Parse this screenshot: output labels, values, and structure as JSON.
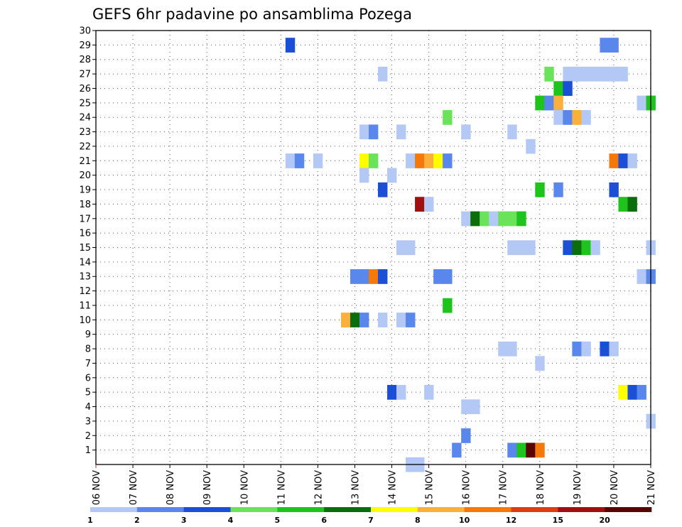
{
  "chart_data": {
    "type": "heatmap",
    "title": "GEFS 6hr padavine po ansamblima Pozega",
    "x_labels": [
      "06 NOV",
      "07 NOV",
      "08 NOV",
      "09 NOV",
      "10 NOV",
      "11 NOV",
      "12 NOV",
      "13 NOV",
      "14 NOV",
      "15 NOV",
      "16 NOV",
      "17 NOV",
      "18 NOV",
      "19 NOV",
      "20 NOV",
      "21 NOV"
    ],
    "y_labels": [
      "1",
      "2",
      "3",
      "4",
      "5",
      "6",
      "7",
      "8",
      "9",
      "10",
      "11",
      "12",
      "13",
      "14",
      "15",
      "16",
      "17",
      "18",
      "19",
      "20",
      "21",
      "22",
      "23",
      "24",
      "25",
      "26",
      "27",
      "28",
      "29",
      "30"
    ],
    "x_range_days": [
      0,
      15
    ],
    "y_range": [
      0,
      30
    ],
    "grid": true,
    "legend": {
      "placement": "bottom",
      "labels": [
        "1",
        "2",
        "3",
        "4",
        "5",
        "6",
        "7",
        "8",
        "10",
        "12",
        "15",
        "20"
      ],
      "colors": [
        "#b4c8f5",
        "#5a87eb",
        "#1a4fd6",
        "#6ae35a",
        "#1ec31e",
        "#0b6e0b",
        "#ffff00",
        "#fbb03b",
        "#f5780a",
        "#e03c14",
        "#a01010",
        "#5a0505"
      ]
    },
    "cells": [
      {
        "m": 29,
        "d": 5.25,
        "c": 2
      },
      {
        "m": 29,
        "d": 13.75,
        "c": 1
      },
      {
        "m": 29,
        "d": 14.0,
        "c": 1
      },
      {
        "m": 27,
        "d": 7.75,
        "c": 0
      },
      {
        "m": 27,
        "d": 12.25,
        "c": 3
      },
      {
        "m": 27,
        "d": 12.75,
        "c": 0
      },
      {
        "m": 27,
        "d": 13.0,
        "c": 0
      },
      {
        "m": 27,
        "d": 13.25,
        "c": 0
      },
      {
        "m": 27,
        "d": 13.5,
        "c": 0
      },
      {
        "m": 27,
        "d": 13.75,
        "c": 0
      },
      {
        "m": 27,
        "d": 14.0,
        "c": 0
      },
      {
        "m": 27,
        "d": 14.25,
        "c": 0
      },
      {
        "m": 26,
        "d": 12.5,
        "c": 4
      },
      {
        "m": 26,
        "d": 12.75,
        "c": 2
      },
      {
        "m": 25,
        "d": 12.0,
        "c": 4
      },
      {
        "m": 25,
        "d": 12.25,
        "c": 1
      },
      {
        "m": 25,
        "d": 12.5,
        "c": 7
      },
      {
        "m": 25,
        "d": 14.75,
        "c": 0
      },
      {
        "m": 25,
        "d": 15.0,
        "c": 4
      },
      {
        "m": 24,
        "d": 9.5,
        "c": 3
      },
      {
        "m": 24,
        "d": 12.5,
        "c": 0
      },
      {
        "m": 24,
        "d": 12.75,
        "c": 1
      },
      {
        "m": 24,
        "d": 13.0,
        "c": 7
      },
      {
        "m": 24,
        "d": 13.25,
        "c": 0
      },
      {
        "m": 23,
        "d": 7.25,
        "c": 0
      },
      {
        "m": 23,
        "d": 7.5,
        "c": 1
      },
      {
        "m": 23,
        "d": 8.25,
        "c": 0
      },
      {
        "m": 23,
        "d": 10.0,
        "c": 0
      },
      {
        "m": 23,
        "d": 11.25,
        "c": 0
      },
      {
        "m": 22,
        "d": 11.75,
        "c": 0
      },
      {
        "m": 21,
        "d": 5.25,
        "c": 0
      },
      {
        "m": 21,
        "d": 5.5,
        "c": 1
      },
      {
        "m": 21,
        "d": 6.0,
        "c": 0
      },
      {
        "m": 21,
        "d": 7.25,
        "c": 6
      },
      {
        "m": 21,
        "d": 7.5,
        "c": 3
      },
      {
        "m": 21,
        "d": 8.5,
        "c": 0
      },
      {
        "m": 21,
        "d": 8.75,
        "c": 8
      },
      {
        "m": 21,
        "d": 9.0,
        "c": 7
      },
      {
        "m": 21,
        "d": 9.25,
        "c": 6
      },
      {
        "m": 21,
        "d": 9.5,
        "c": 1
      },
      {
        "m": 21,
        "d": 14.0,
        "c": 8
      },
      {
        "m": 21,
        "d": 14.25,
        "c": 2
      },
      {
        "m": 21,
        "d": 14.5,
        "c": 0
      },
      {
        "m": 20,
        "d": 7.25,
        "c": 0
      },
      {
        "m": 20,
        "d": 8.0,
        "c": 0
      },
      {
        "m": 19,
        "d": 7.75,
        "c": 2
      },
      {
        "m": 19,
        "d": 12.0,
        "c": 4
      },
      {
        "m": 19,
        "d": 12.5,
        "c": 1
      },
      {
        "m": 19,
        "d": 14.0,
        "c": 2
      },
      {
        "m": 18,
        "d": 8.75,
        "c": 10
      },
      {
        "m": 18,
        "d": 9.0,
        "c": 0
      },
      {
        "m": 18,
        "d": 14.25,
        "c": 4
      },
      {
        "m": 18,
        "d": 14.5,
        "c": 5
      },
      {
        "m": 17,
        "d": 10.0,
        "c": 0
      },
      {
        "m": 17,
        "d": 10.25,
        "c": 5
      },
      {
        "m": 17,
        "d": 10.5,
        "c": 3
      },
      {
        "m": 17,
        "d": 10.75,
        "c": 0
      },
      {
        "m": 17,
        "d": 11.0,
        "c": 3
      },
      {
        "m": 17,
        "d": 11.25,
        "c": 3
      },
      {
        "m": 17,
        "d": 11.5,
        "c": 4
      },
      {
        "m": 15,
        "d": 8.25,
        "c": 0
      },
      {
        "m": 15,
        "d": 8.5,
        "c": 0
      },
      {
        "m": 15,
        "d": 11.25,
        "c": 0
      },
      {
        "m": 15,
        "d": 11.5,
        "c": 0
      },
      {
        "m": 15,
        "d": 11.75,
        "c": 0
      },
      {
        "m": 15,
        "d": 12.75,
        "c": 2
      },
      {
        "m": 15,
        "d": 13.0,
        "c": 5
      },
      {
        "m": 15,
        "d": 13.25,
        "c": 4
      },
      {
        "m": 15,
        "d": 13.5,
        "c": 0
      },
      {
        "m": 15,
        "d": 15.0,
        "c": 0
      },
      {
        "m": 13,
        "d": 7.0,
        "c": 1
      },
      {
        "m": 13,
        "d": 7.25,
        "c": 1
      },
      {
        "m": 13,
        "d": 7.5,
        "c": 8
      },
      {
        "m": 13,
        "d": 7.75,
        "c": 2
      },
      {
        "m": 13,
        "d": 9.25,
        "c": 1
      },
      {
        "m": 13,
        "d": 9.5,
        "c": 1
      },
      {
        "m": 13,
        "d": 14.75,
        "c": 0
      },
      {
        "m": 13,
        "d": 15.0,
        "c": 1
      },
      {
        "m": 11,
        "d": 9.5,
        "c": 4
      },
      {
        "m": 10,
        "d": 6.75,
        "c": 7
      },
      {
        "m": 10,
        "d": 7.0,
        "c": 5
      },
      {
        "m": 10,
        "d": 7.25,
        "c": 1
      },
      {
        "m": 10,
        "d": 7.75,
        "c": 0
      },
      {
        "m": 10,
        "d": 8.25,
        "c": 0
      },
      {
        "m": 10,
        "d": 8.5,
        "c": 1
      },
      {
        "m": 8,
        "d": 11.0,
        "c": 0
      },
      {
        "m": 8,
        "d": 11.25,
        "c": 0
      },
      {
        "m": 8,
        "d": 13.0,
        "c": 1
      },
      {
        "m": 8,
        "d": 13.25,
        "c": 0
      },
      {
        "m": 8,
        "d": 13.75,
        "c": 2
      },
      {
        "m": 8,
        "d": 14.0,
        "c": 0
      },
      {
        "m": 7,
        "d": 12.0,
        "c": 0
      },
      {
        "m": 5,
        "d": 8.0,
        "c": 2
      },
      {
        "m": 5,
        "d": 8.25,
        "c": 0
      },
      {
        "m": 5,
        "d": 9.0,
        "c": 0
      },
      {
        "m": 5,
        "d": 14.25,
        "c": 6
      },
      {
        "m": 5,
        "d": 14.5,
        "c": 2
      },
      {
        "m": 5,
        "d": 14.75,
        "c": 1
      },
      {
        "m": 4,
        "d": 10.0,
        "c": 0
      },
      {
        "m": 4,
        "d": 10.25,
        "c": 0
      },
      {
        "m": 3,
        "d": 15.0,
        "c": 0
      },
      {
        "m": 2,
        "d": 10.0,
        "c": 1
      },
      {
        "m": 1,
        "d": 9.75,
        "c": 1
      },
      {
        "m": 1,
        "d": 11.25,
        "c": 1
      },
      {
        "m": 1,
        "d": 11.5,
        "c": 4
      },
      {
        "m": 1,
        "d": 11.75,
        "c": 11
      },
      {
        "m": 1,
        "d": 12.0,
        "c": 8
      },
      {
        "m": 0,
        "d": 8.5,
        "c": 0
      },
      {
        "m": 0,
        "d": 8.75,
        "c": 0
      }
    ]
  }
}
